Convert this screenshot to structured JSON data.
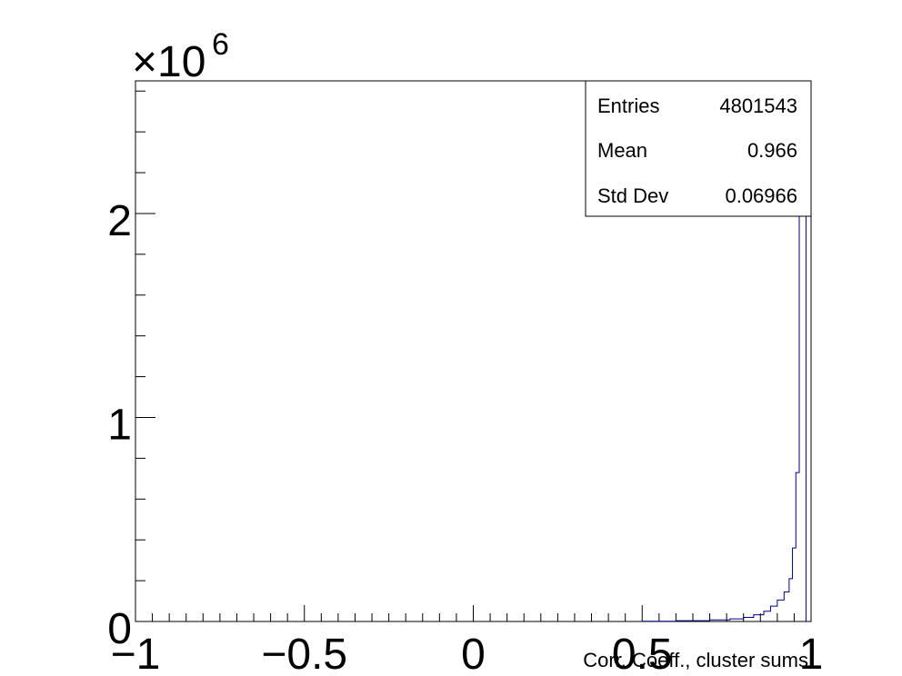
{
  "chart_data": {
    "type": "histogram",
    "xlabel": "Corr. Coeff., cluster sums",
    "ylabel": "",
    "xlim": [
      -1,
      1
    ],
    "ylim": [
      0,
      2.65
    ],
    "y_scale_factor_label": "×10",
    "y_scale_factor_exponent": "6",
    "x_ticks": [
      {
        "value": -1,
        "label": "−1"
      },
      {
        "value": -0.5,
        "label": "−0.5"
      },
      {
        "value": 0,
        "label": "0"
      },
      {
        "value": 0.5,
        "label": "0.5"
      },
      {
        "value": 1,
        "label": "1"
      }
    ],
    "y_ticks": [
      {
        "value": 0,
        "label": "0"
      },
      {
        "value": 1,
        "label": "1"
      },
      {
        "value": 2,
        "label": "2"
      }
    ],
    "line_color": "#000080",
    "bins": [
      {
        "x0": 0.5,
        "x1": 0.6,
        "y": 0.001
      },
      {
        "x0": 0.6,
        "x1": 0.7,
        "y": 0.004
      },
      {
        "x0": 0.7,
        "x1": 0.76,
        "y": 0.008
      },
      {
        "x0": 0.76,
        "x1": 0.8,
        "y": 0.013
      },
      {
        "x0": 0.8,
        "x1": 0.83,
        "y": 0.02
      },
      {
        "x0": 0.83,
        "x1": 0.86,
        "y": 0.033
      },
      {
        "x0": 0.86,
        "x1": 0.88,
        "y": 0.05
      },
      {
        "x0": 0.88,
        "x1": 0.9,
        "y": 0.075
      },
      {
        "x0": 0.9,
        "x1": 0.92,
        "y": 0.105
      },
      {
        "x0": 0.92,
        "x1": 0.935,
        "y": 0.145
      },
      {
        "x0": 0.935,
        "x1": 0.945,
        "y": 0.21
      },
      {
        "x0": 0.945,
        "x1": 0.955,
        "y": 0.36
      },
      {
        "x0": 0.955,
        "x1": 0.965,
        "y": 0.73
      },
      {
        "x0": 0.965,
        "x1": 0.975,
        "y": 2.6
      },
      {
        "x0": 0.975,
        "x1": 0.985,
        "y": 2.65
      }
    ]
  },
  "stats_box": {
    "rows": [
      {
        "label": "Entries",
        "value": "4801543"
      },
      {
        "label": "Mean",
        "value": "0.966"
      },
      {
        "label": "Std Dev",
        "value": "0.06966"
      }
    ]
  }
}
